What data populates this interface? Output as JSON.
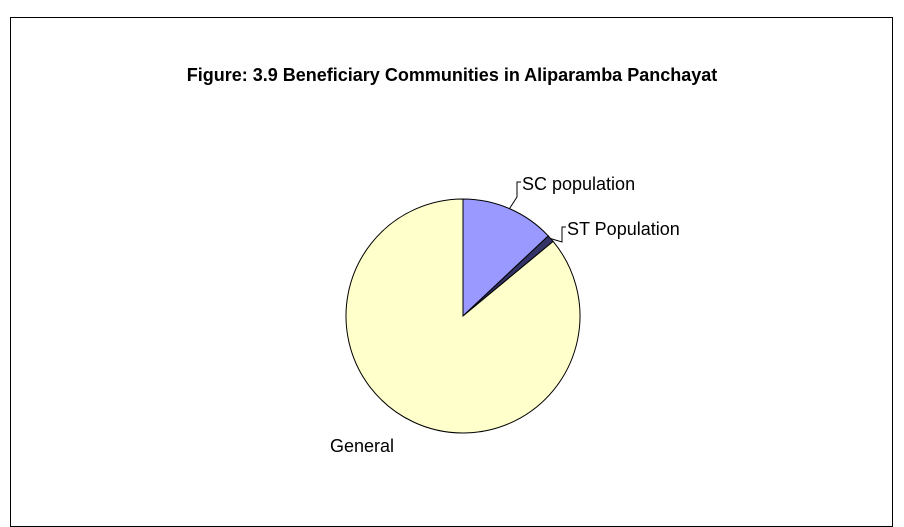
{
  "chart_data": {
    "type": "pie",
    "title": "Figure: 3.9 Beneficiary Communities in Aliparamba Panchayat",
    "categories": [
      "SC population",
      "ST Population",
      "General"
    ],
    "values": [
      13,
      1,
      86
    ],
    "colors": [
      "#9999ff",
      "#333366",
      "#ffffcc"
    ]
  }
}
